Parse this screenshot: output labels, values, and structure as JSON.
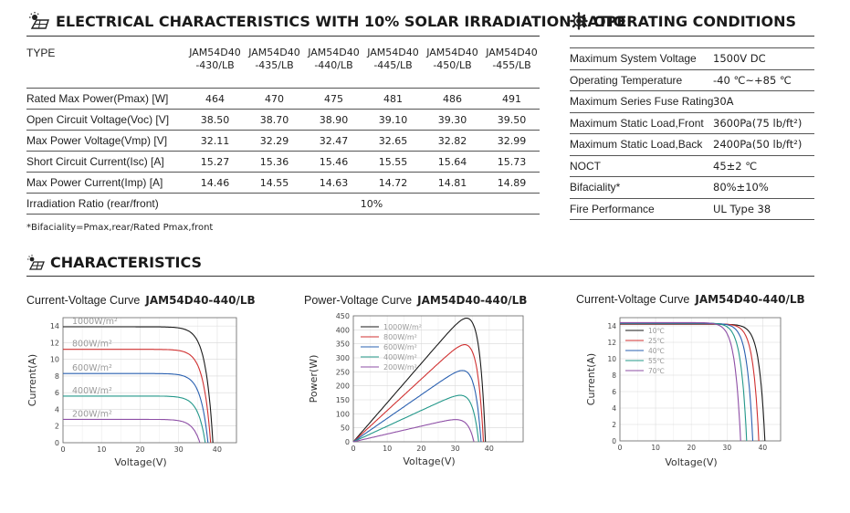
{
  "electrical": {
    "title": "ELECTRICAL CHARACTERISTICS WITH 10% SOLAR IRRADIATION RATIO",
    "type_label": "TYPE",
    "models": [
      {
        "line1": "JAM54D40",
        "line2": "-430/LB"
      },
      {
        "line1": "JAM54D40",
        "line2": "-435/LB"
      },
      {
        "line1": "JAM54D40",
        "line2": "-440/LB"
      },
      {
        "line1": "JAM54D40",
        "line2": "-445/LB"
      },
      {
        "line1": "JAM54D40",
        "line2": "-450/LB"
      },
      {
        "line1": "JAM54D40",
        "line2": "-455/LB"
      }
    ],
    "rows": [
      {
        "label": "Rated Max Power(Pmax) [W]",
        "values": [
          "464",
          "470",
          "475",
          "481",
          "486",
          "491"
        ]
      },
      {
        "label": "Open Circuit Voltage(Voc) [V]",
        "values": [
          "38.50",
          "38.70",
          "38.90",
          "39.10",
          "39.30",
          "39.50"
        ]
      },
      {
        "label": "Max Power Voltage(Vmp) [V]",
        "values": [
          "32.11",
          "32.29",
          "32.47",
          "32.65",
          "32.82",
          "32.99"
        ]
      },
      {
        "label": "Short Circuit Current(Isc) [A]",
        "values": [
          "15.27",
          "15.36",
          "15.46",
          "15.55",
          "15.64",
          "15.73"
        ]
      },
      {
        "label": "Max Power Current(Imp) [A]",
        "values": [
          "14.46",
          "14.55",
          "14.63",
          "14.72",
          "14.81",
          "14.89"
        ]
      }
    ],
    "irradiation_label": "Irradiation Ratio (rear/front)",
    "irradiation_value": "10%",
    "footnote": "*Bifaciality=Pmax,rear/Rated Pmax,front"
  },
  "operating": {
    "title": "OPERATING CONDITIONS",
    "rows": [
      {
        "label": "Maximum System Voltage",
        "value": "1500V DC"
      },
      {
        "label": "Operating Temperature",
        "value": "-40 ℃~+85 ℃"
      },
      {
        "label": "Maximum Series Fuse Rating",
        "value": "30A"
      },
      {
        "label": "Maximum Static Load,Front",
        "value": "3600Pa(75 lb/ft²)"
      },
      {
        "label": "Maximum Static Load,Back",
        "value": "2400Pa(50 lb/ft²)"
      },
      {
        "label": "NOCT",
        "value": "45±2 ℃"
      },
      {
        "label": "Bifaciality*",
        "value": "80%±10%"
      },
      {
        "label": "Fire Performance",
        "value": "UL Type 38"
      }
    ]
  },
  "characteristics": {
    "title": "CHARACTERISTICS"
  },
  "chart_data": [
    {
      "type": "line",
      "title_prefix": "Current-Voltage Curve",
      "title": "JAM54D40-440/LB",
      "xlabel": "Voltage(V)",
      "ylabel": "Current(A)",
      "xlim": [
        0,
        45
      ],
      "ylim": [
        0,
        15
      ],
      "xticks": [
        0,
        10,
        20,
        30,
        40
      ],
      "yticks": [
        0,
        2,
        4,
        6,
        8,
        10,
        12,
        14
      ],
      "grid": true,
      "legend": "inline-left",
      "series": [
        {
          "name": "1000W/m²",
          "color": "#1a1a1a",
          "isc": 13.9,
          "voc": 38.9
        },
        {
          "name": "800W/m²",
          "color": "#d03030",
          "isc": 11.2,
          "voc": 38.3
        },
        {
          "name": "600W/m²",
          "color": "#2a60b0",
          "isc": 8.3,
          "voc": 37.6
        },
        {
          "name": "400W/m²",
          "color": "#23988a",
          "isc": 5.6,
          "voc": 36.9
        },
        {
          "name": "200W/m²",
          "color": "#8e4fa6",
          "isc": 2.8,
          "voc": 35.5
        }
      ]
    },
    {
      "type": "line",
      "title_prefix": "Power-Voltage Curve",
      "title": "JAM54D40-440/LB",
      "xlabel": "Voltage(V)",
      "ylabel": "Power(W)",
      "xlim": [
        0,
        50
      ],
      "ylim": [
        0,
        450
      ],
      "xticks": [
        0,
        10,
        20,
        30,
        40
      ],
      "yticks": [
        0,
        50,
        100,
        150,
        200,
        250,
        300,
        350,
        400,
        450
      ],
      "grid": true,
      "legend": "top-left",
      "series": [
        {
          "name": "1000W/m²",
          "color": "#1a1a1a",
          "isc": 14.0,
          "voc": 38.9
        },
        {
          "name": "800W/m²",
          "color": "#d03030",
          "isc": 11.2,
          "voc": 38.3
        },
        {
          "name": "600W/m²",
          "color": "#2a60b0",
          "isc": 8.4,
          "voc": 37.6
        },
        {
          "name": "400W/m²",
          "color": "#23988a",
          "isc": 5.6,
          "voc": 36.9
        },
        {
          "name": "200W/m²",
          "color": "#8e4fa6",
          "isc": 2.8,
          "voc": 35.5
        }
      ]
    },
    {
      "type": "line",
      "title_prefix": "Current-Voltage Curve",
      "title": "JAM54D40-440/LB",
      "xlabel": "Voltage(V)",
      "ylabel": "Current(A)",
      "xlim": [
        0,
        45
      ],
      "ylim": [
        0,
        15
      ],
      "xticks": [
        0,
        10,
        20,
        30,
        40
      ],
      "yticks": [
        0,
        2,
        4,
        6,
        8,
        10,
        12,
        14
      ],
      "grid": true,
      "legend": "top-left",
      "series": [
        {
          "name": "10℃",
          "color": "#1a1a1a",
          "isc": 14.2,
          "voc": 40.6
        },
        {
          "name": "25℃",
          "color": "#d03030",
          "isc": 14.25,
          "voc": 38.9
        },
        {
          "name": "40℃",
          "color": "#2a60b0",
          "isc": 14.3,
          "voc": 37.2
        },
        {
          "name": "55℃",
          "color": "#23988a",
          "isc": 14.35,
          "voc": 35.5
        },
        {
          "name": "70℃",
          "color": "#8e4fa6",
          "isc": 14.4,
          "voc": 33.8
        }
      ]
    }
  ]
}
